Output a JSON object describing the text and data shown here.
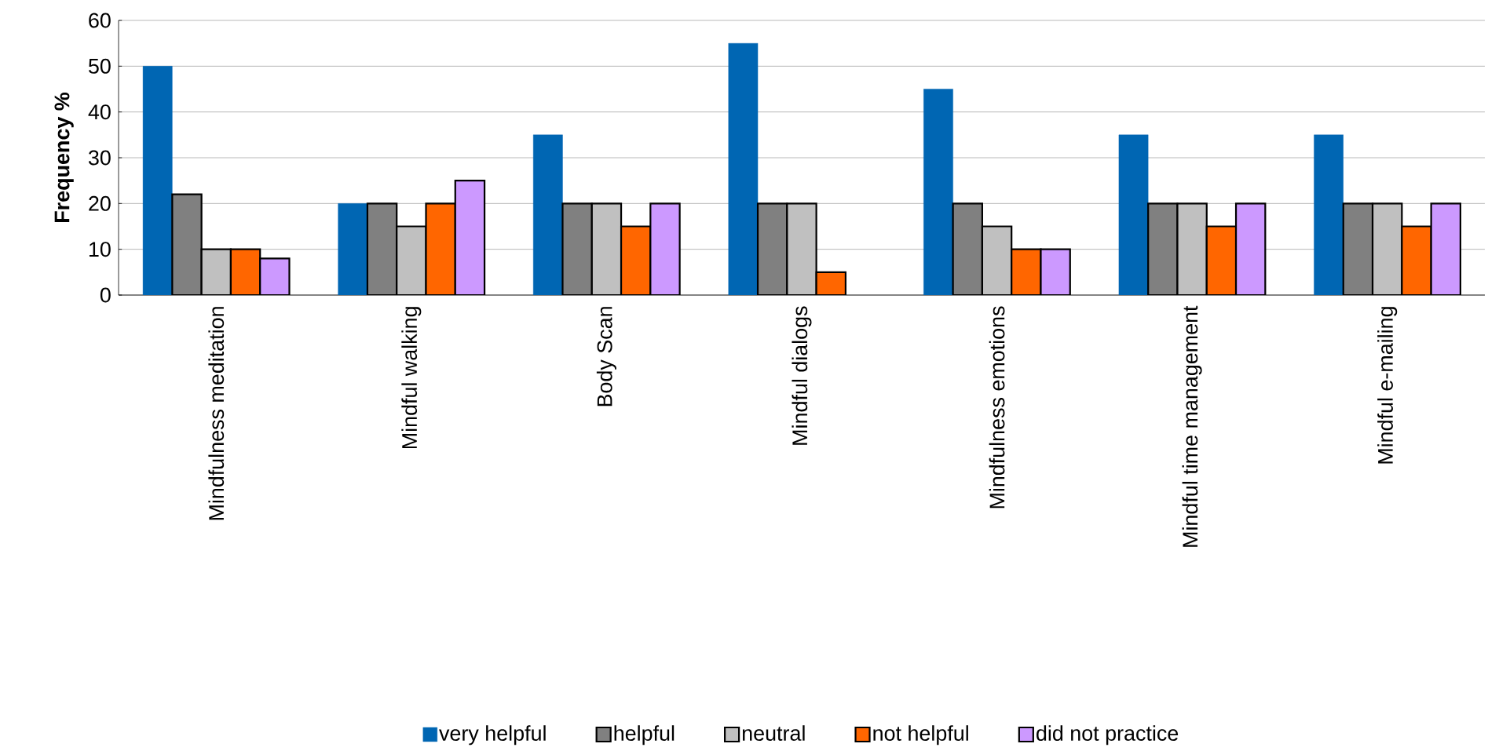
{
  "chart_data": {
    "type": "bar",
    "ylabel": "Frequency %",
    "categories": [
      "Mindfulness meditation",
      "Mindful walking",
      "Body Scan",
      "Mindful dialogs",
      "Mindfulness emotions",
      "Mindful time management",
      "Mindful e-mailing"
    ],
    "series": [
      {
        "name": "very helpful",
        "color": "#0066b3",
        "values": [
          50,
          20,
          35,
          55,
          45,
          35,
          35
        ]
      },
      {
        "name": "helpful",
        "color": "#808080",
        "values": [
          22,
          20,
          20,
          20,
          20,
          20,
          20
        ]
      },
      {
        "name": "neutral",
        "color": "#c0c0c0",
        "values": [
          10,
          15,
          20,
          20,
          15,
          20,
          20
        ]
      },
      {
        "name": "not helpful",
        "color": "#ff6600",
        "values": [
          10,
          20,
          15,
          5,
          10,
          15,
          15
        ]
      },
      {
        "name": "did not practice",
        "color": "#cc99ff",
        "values": [
          8,
          25,
          20,
          null,
          10,
          20,
          20
        ]
      }
    ],
    "ylim": [
      0,
      60
    ],
    "yticks": [
      0,
      10,
      20,
      30,
      40,
      50,
      60
    ],
    "grid": "y",
    "legend": "bottom"
  }
}
